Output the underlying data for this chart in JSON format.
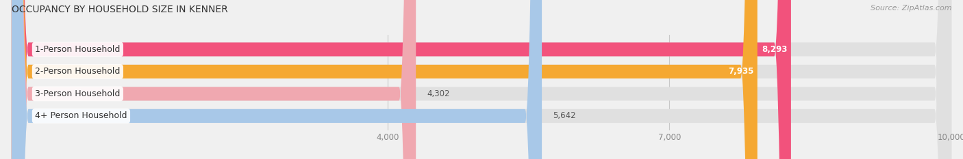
{
  "title": "OCCUPANCY BY HOUSEHOLD SIZE IN KENNER",
  "source": "Source: ZipAtlas.com",
  "categories": [
    "1-Person Household",
    "2-Person Household",
    "3-Person Household",
    "4+ Person Household"
  ],
  "values": [
    8293,
    7935,
    4302,
    5642
  ],
  "bar_colors": [
    "#f2527c",
    "#f5a832",
    "#f0a8b0",
    "#a8c8e8"
  ],
  "label_colors": [
    "white",
    "white",
    "black",
    "black"
  ],
  "xlim": [
    0,
    10000
  ],
  "xticks": [
    4000,
    7000,
    10000
  ],
  "xtick_labels": [
    "4,000",
    "7,000",
    "10,000"
  ],
  "background_color": "#f0f0f0",
  "bar_background_color": "#e0e0e0",
  "title_fontsize": 10,
  "source_fontsize": 8,
  "bar_label_fontsize": 8.5,
  "category_fontsize": 9,
  "bar_height": 0.62
}
